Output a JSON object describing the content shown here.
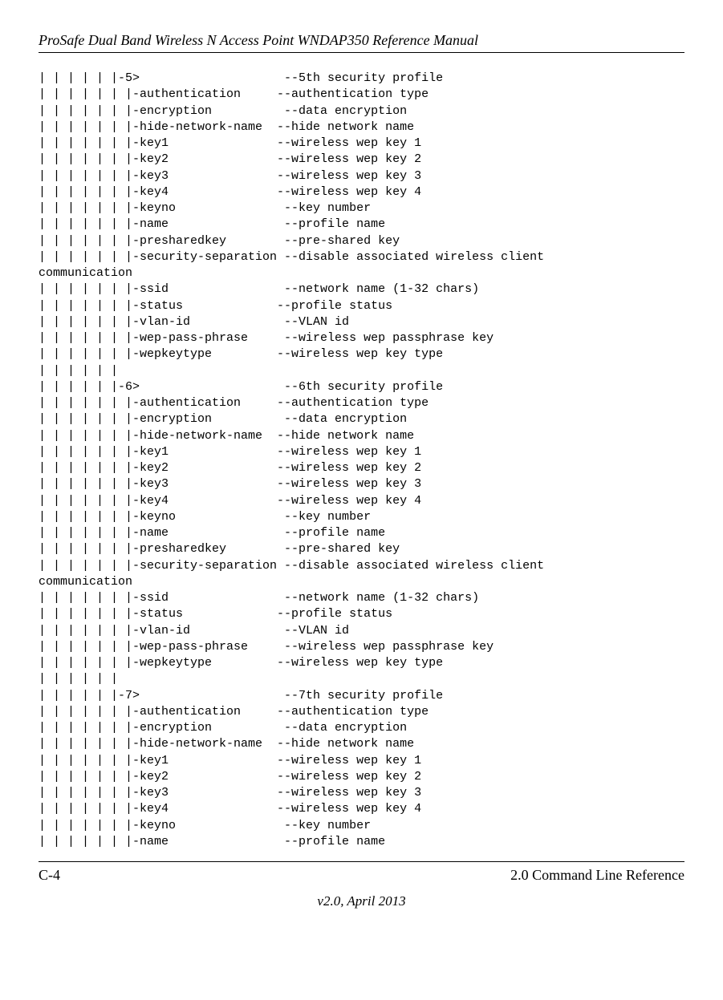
{
  "header": {
    "title": "ProSafe Dual Band Wireless N Access Point WNDAP350 Reference Manual"
  },
  "tree": {
    "profiles": [
      {
        "num": "5",
        "ord": "5th",
        "items": [
          {
            "cmd": "authentication",
            "pad": "     ",
            "desc": "--authentication type"
          },
          {
            "cmd": "encryption",
            "pad": "          ",
            "desc": "--data encryption"
          },
          {
            "cmd": "hide-network-name",
            "pad": "  ",
            "desc": "--hide network name"
          },
          {
            "cmd": "key1",
            "pad": "               ",
            "desc": "--wireless wep key 1"
          },
          {
            "cmd": "key2",
            "pad": "               ",
            "desc": "--wireless wep key 2"
          },
          {
            "cmd": "key3",
            "pad": "               ",
            "desc": "--wireless wep key 3"
          },
          {
            "cmd": "key4",
            "pad": "               ",
            "desc": "--wireless wep key 4"
          },
          {
            "cmd": "keyno",
            "pad": "               ",
            "desc": "--key number"
          },
          {
            "cmd": "name",
            "pad": "                ",
            "desc": "--profile name"
          },
          {
            "cmd": "presharedkey",
            "pad": "        ",
            "desc": "--pre-shared key"
          },
          {
            "cmd": "security-separation",
            "pad": " ",
            "desc": "--disable associated wireless client",
            "wrap": "communication"
          },
          {
            "cmd": "ssid",
            "pad": "                ",
            "desc": "--network name (1-32 chars)"
          },
          {
            "cmd": "status",
            "pad": "             ",
            "desc": "--profile status"
          },
          {
            "cmd": "vlan-id",
            "pad": "             ",
            "desc": "--VLAN id"
          },
          {
            "cmd": "wep-pass-phrase",
            "pad": "     ",
            "desc": "--wireless wep passphrase key"
          },
          {
            "cmd": "wepkeytype",
            "pad": "         ",
            "desc": "--wireless wep key type"
          }
        ]
      },
      {
        "num": "6",
        "ord": "6th",
        "items": [
          {
            "cmd": "authentication",
            "pad": "     ",
            "desc": "--authentication type"
          },
          {
            "cmd": "encryption",
            "pad": "          ",
            "desc": "--data encryption"
          },
          {
            "cmd": "hide-network-name",
            "pad": "  ",
            "desc": "--hide network name"
          },
          {
            "cmd": "key1",
            "pad": "               ",
            "desc": "--wireless wep key 1"
          },
          {
            "cmd": "key2",
            "pad": "               ",
            "desc": "--wireless wep key 2"
          },
          {
            "cmd": "key3",
            "pad": "               ",
            "desc": "--wireless wep key 3"
          },
          {
            "cmd": "key4",
            "pad": "               ",
            "desc": "--wireless wep key 4"
          },
          {
            "cmd": "keyno",
            "pad": "               ",
            "desc": "--key number"
          },
          {
            "cmd": "name",
            "pad": "                ",
            "desc": "--profile name"
          },
          {
            "cmd": "presharedkey",
            "pad": "        ",
            "desc": "--pre-shared key"
          },
          {
            "cmd": "security-separation",
            "pad": " ",
            "desc": "--disable associated wireless client",
            "wrap": "communication"
          },
          {
            "cmd": "ssid",
            "pad": "                ",
            "desc": "--network name (1-32 chars)"
          },
          {
            "cmd": "status",
            "pad": "             ",
            "desc": "--profile status"
          },
          {
            "cmd": "vlan-id",
            "pad": "             ",
            "desc": "--VLAN id"
          },
          {
            "cmd": "wep-pass-phrase",
            "pad": "     ",
            "desc": "--wireless wep passphrase key"
          },
          {
            "cmd": "wepkeytype",
            "pad": "         ",
            "desc": "--wireless wep key type"
          }
        ]
      },
      {
        "num": "7",
        "ord": "7th",
        "items": [
          {
            "cmd": "authentication",
            "pad": "     ",
            "desc": "--authentication type"
          },
          {
            "cmd": "encryption",
            "pad": "          ",
            "desc": "--data encryption"
          },
          {
            "cmd": "hide-network-name",
            "pad": "  ",
            "desc": "--hide network name"
          },
          {
            "cmd": "key1",
            "pad": "               ",
            "desc": "--wireless wep key 1"
          },
          {
            "cmd": "key2",
            "pad": "               ",
            "desc": "--wireless wep key 2"
          },
          {
            "cmd": "key3",
            "pad": "               ",
            "desc": "--wireless wep key 3"
          },
          {
            "cmd": "key4",
            "pad": "               ",
            "desc": "--wireless wep key 4"
          },
          {
            "cmd": "keyno",
            "pad": "               ",
            "desc": "--key number"
          },
          {
            "cmd": "name",
            "pad": "                ",
            "desc": "--profile name"
          }
        ]
      }
    ]
  },
  "footer": {
    "left": "C-4",
    "right": "2.0 Command Line Reference",
    "version": "v2.0, April 2013"
  }
}
